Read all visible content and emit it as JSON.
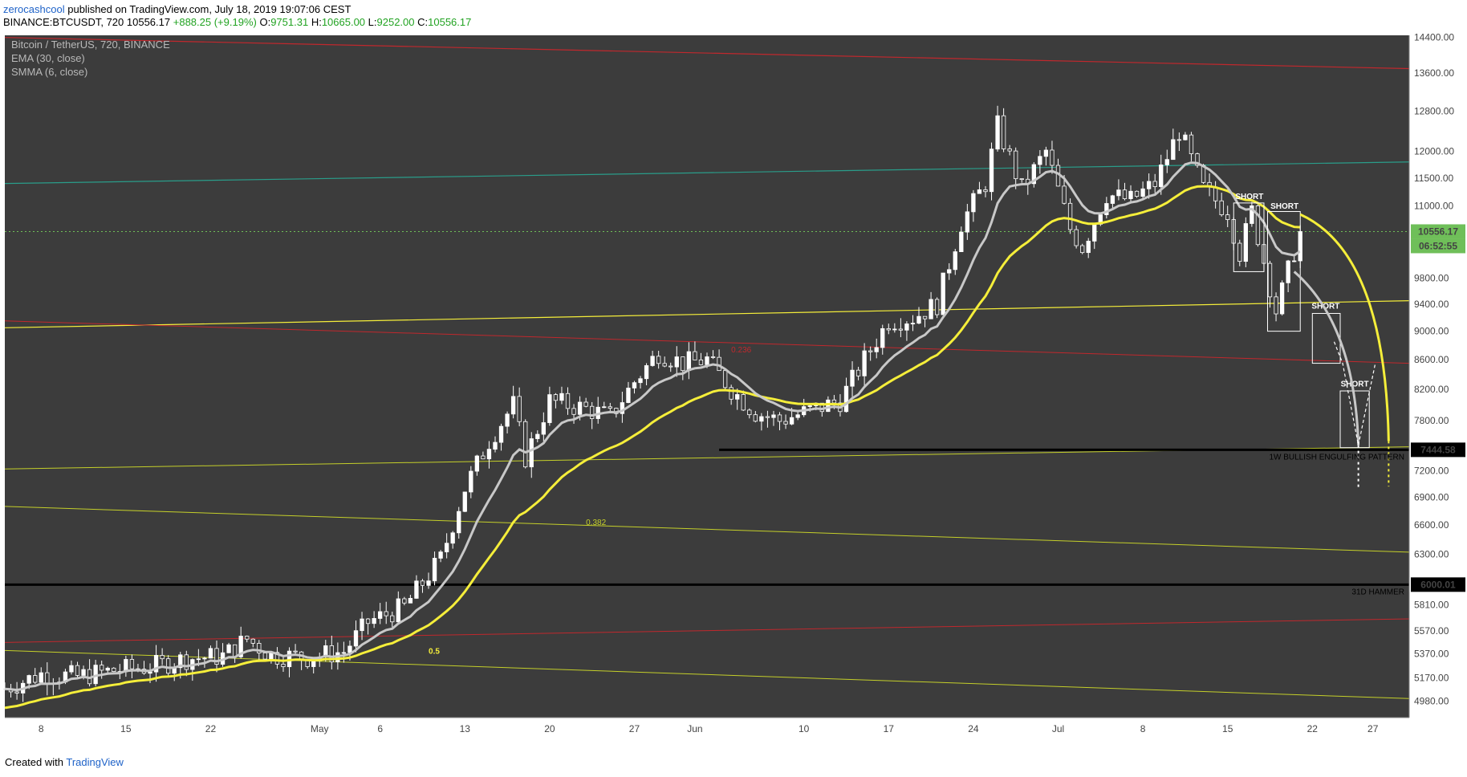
{
  "header": {
    "author": "zerocashcool",
    "published": "published on TradingView.com, July 18, 2019 19:07:06 CEST"
  },
  "ohlc": {
    "symbol": "BINANCE:BTCUSDT, 720",
    "last": "10556.17",
    "change": "+888.25 (+9.19%)",
    "o_label": "O:",
    "o": "9751.31",
    "h_label": "H:",
    "h": "10665.00",
    "l_label": "L:",
    "l": "9252.00",
    "c_label": "C:",
    "c": "10556.17"
  },
  "footer": {
    "created": "Created with",
    "brand": "TradingView"
  },
  "colors": {
    "background": "#3c3c3c",
    "up_candle": "#ffffff",
    "down_candle": "#3c3c3c",
    "ema": "#f5ee3a",
    "smma": "#c8c8c8",
    "resistance": "#c0282d",
    "teal": "#2a9d8a",
    "fib": "#c4cf2a",
    "support": "#000000",
    "price_line": "#6fbf59"
  },
  "chart_data": {
    "type": "candlestick",
    "title": "Bitcoin / TetherUS, 720, BINANCE",
    "legend": [
      "Bitcoin / TetherUS, 720, BINANCE",
      "EMA (30, close)",
      "SMMA (6, close)"
    ],
    "yaxis_scale": "log",
    "ylim": [
      4850,
      14450
    ],
    "y_ticks": [
      "14400.00",
      "13600.00",
      "12800.00",
      "12000.00",
      "11500.00",
      "11000.00",
      "9800.00",
      "9400.00",
      "9000.00",
      "8600.00",
      "8200.00",
      "7800.00",
      "7200.00",
      "6900.00",
      "6600.00",
      "6300.00",
      "5810.00",
      "5570.00",
      "5370.00",
      "5170.00",
      "4980.00"
    ],
    "x_ticks": [
      {
        "label": "8",
        "day": 8
      },
      {
        "label": "15",
        "day": 15
      },
      {
        "label": "22",
        "day": 22
      },
      {
        "label": "May",
        "day": 31
      },
      {
        "label": "6",
        "day": 36
      },
      {
        "label": "13",
        "day": 43
      },
      {
        "label": "20",
        "day": 50
      },
      {
        "label": "27",
        "day": 57
      },
      {
        "label": "Jun",
        "day": 62
      },
      {
        "label": "10",
        "day": 71
      },
      {
        "label": "17",
        "day": 78
      },
      {
        "label": "24",
        "day": 85
      },
      {
        "label": "Jul",
        "day": 92
      },
      {
        "label": "8",
        "day": 99
      },
      {
        "label": "15",
        "day": 106
      },
      {
        "label": "22",
        "day": 113
      },
      {
        "label": "27",
        "day": 118
      }
    ],
    "xlim_days": [
      5,
      121
    ],
    "close_anchors": [
      [
        5,
        5080
      ],
      [
        8,
        5200
      ],
      [
        11,
        5180
      ],
      [
        14,
        5230
      ],
      [
        17,
        5260
      ],
      [
        20,
        5330
      ],
      [
        23,
        5350
      ],
      [
        25,
        5500
      ],
      [
        27,
        5360
      ],
      [
        30,
        5340
      ],
      [
        33,
        5390
      ],
      [
        35,
        5650
      ],
      [
        38,
        5790
      ],
      [
        41,
        6250
      ],
      [
        43,
        7000
      ],
      [
        45,
        7550
      ],
      [
        47,
        8000
      ],
      [
        48,
        7350
      ],
      [
        50,
        8050
      ],
      [
        53,
        7950
      ],
      [
        55,
        7850
      ],
      [
        57,
        8300
      ],
      [
        59,
        8700
      ],
      [
        61,
        8550
      ],
      [
        63,
        8600
      ],
      [
        65,
        8200
      ],
      [
        67,
        7900
      ],
      [
        69,
        7800
      ],
      [
        72,
        7950
      ],
      [
        74,
        8050
      ],
      [
        76,
        8600
      ],
      [
        78,
        9150
      ],
      [
        80,
        9200
      ],
      [
        82,
        9400
      ],
      [
        84,
        10700
      ],
      [
        86,
        11400
      ],
      [
        87,
        12500
      ],
      [
        89,
        11300
      ],
      [
        91,
        12000
      ],
      [
        93,
        10600
      ],
      [
        94,
        10300
      ],
      [
        96,
        11200
      ],
      [
        98,
        11100
      ],
      [
        100,
        11400
      ],
      [
        102,
        12400
      ],
      [
        104,
        11300
      ],
      [
        106,
        10900
      ],
      [
        107,
        10200
      ],
      [
        108,
        10900
      ],
      [
        110,
        9300
      ],
      [
        112,
        10556
      ]
    ],
    "series": [
      {
        "name": "EMA (30, close)"
      },
      {
        "name": "SMMA (6, close)"
      }
    ],
    "price_labels": [
      {
        "value": "10556.17",
        "color": "#6fbf59"
      },
      {
        "value": "06:52:55",
        "color": "#6fbf59"
      },
      {
        "value": "7444.58",
        "color": "#000000"
      },
      {
        "value": "6000.01",
        "color": "#000000"
      }
    ],
    "annotations": {
      "fib_0236": "0.236",
      "fib_0382": "0.382",
      "fib_05": "0.5",
      "short": "SHORT",
      "weekly_pattern": "1W BULLISH ENGULFING PATTERN",
      "daily_hammer": "31D HAMMER"
    }
  }
}
